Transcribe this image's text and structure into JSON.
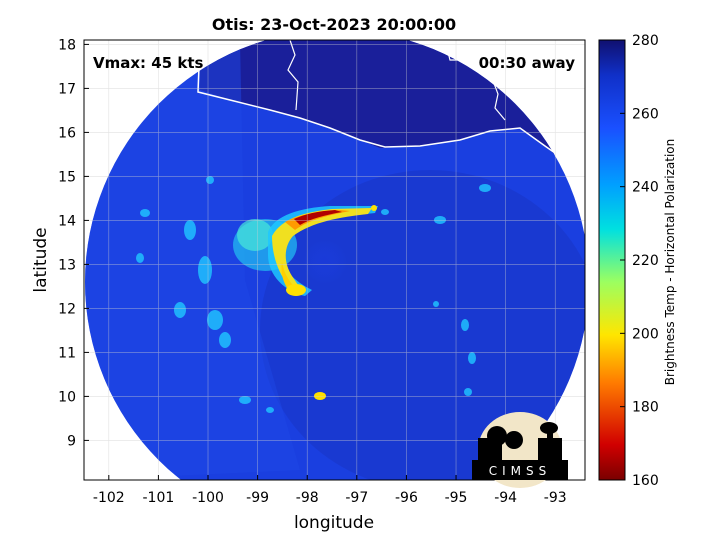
{
  "title": "Otis: 23-Oct-2023 20:00:00",
  "annotation_left": "Vmax: 45 kts",
  "annotation_right": "00:30 away",
  "xlabel": "longitude",
  "ylabel": "latitude",
  "xticks": [
    "-102",
    "-101",
    "-100",
    "-99",
    "-98",
    "-97",
    "-96",
    "-95",
    "-94",
    "-93"
  ],
  "yticks": [
    "18",
    "17",
    "16",
    "15",
    "14",
    "13",
    "12",
    "11",
    "10",
    "9"
  ],
  "colorbar": {
    "label": "Brightness Temp - Horizontal Polarization",
    "ticks": [
      "280",
      "260",
      "240",
      "220",
      "200",
      "180",
      "160"
    ],
    "range": [
      160,
      280
    ],
    "colormap": "parula-jet"
  },
  "logo": {
    "text": "CIMSS"
  },
  "colors": {
    "background_swath": "#1a3fe0",
    "land": "#1a1a8c",
    "coast": "#ffffff",
    "convection_core": "#a00000"
  },
  "map_extent": {
    "lon": [
      -102.5,
      -92.4
    ],
    "lat": [
      8.1,
      18.1
    ]
  },
  "chart_data": {
    "type": "heatmap",
    "title": "Otis: 23-Oct-2023 20:00:00",
    "xlabel": "longitude",
    "ylabel": "latitude",
    "xlim": [
      -102.5,
      -92.4
    ],
    "ylim": [
      8.1,
      18.1
    ],
    "x_ticks": [
      -102,
      -101,
      -100,
      -99,
      -98,
      -97,
      -96,
      -95,
      -94,
      -93
    ],
    "y_ticks": [
      9,
      10,
      11,
      12,
      13,
      14,
      15,
      16,
      17,
      18
    ],
    "color_range": [
      160,
      280
    ],
    "grid": true,
    "features": [
      {
        "lon": -97.8,
        "lat": 14.05,
        "value": 165
      },
      {
        "lon": -98.5,
        "lat": 12.35,
        "value": 205
      },
      {
        "lon": -98.7,
        "lat": 13.9,
        "value": 225
      },
      {
        "lon": -97.2,
        "lat": 14.2,
        "value": 215
      },
      {
        "lon": -97.9,
        "lat": 9.9,
        "value": 210
      }
    ]
  }
}
